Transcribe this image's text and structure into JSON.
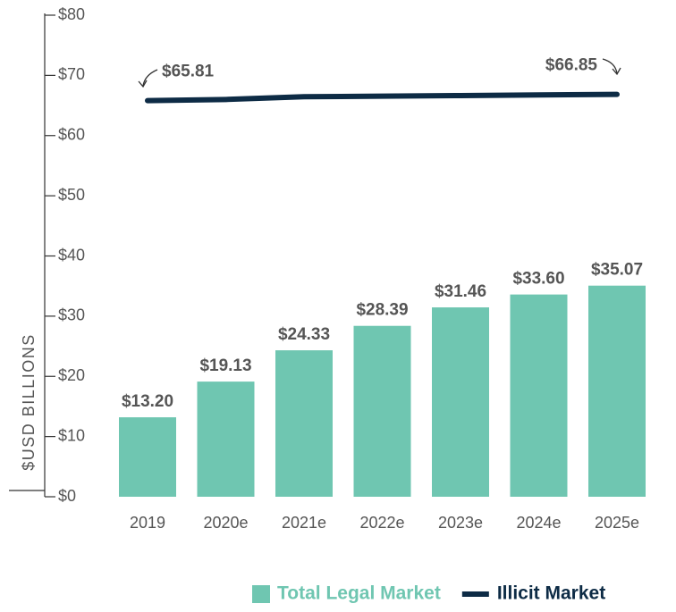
{
  "chart_data": {
    "type": "combo",
    "y_label": "$USD BILLIONS",
    "categories": [
      "2019",
      "2020e",
      "2021e",
      "2022e",
      "2023e",
      "2024e",
      "2025e"
    ],
    "series": [
      {
        "name": "Total Legal Market",
        "type": "bar",
        "color": "#6fc6b1",
        "values": [
          13.2,
          19.13,
          24.33,
          28.39,
          31.46,
          33.6,
          35.07
        ],
        "value_labels": [
          "$13.20",
          "$19.13",
          "$24.33",
          "$28.39",
          "$31.46",
          "$33.60",
          "$35.07"
        ]
      },
      {
        "name": "Illicit Market",
        "type": "line",
        "color": "#0d2b45",
        "values": [
          65.81,
          66.0,
          66.45,
          66.55,
          66.65,
          66.75,
          66.85
        ],
        "value_labels": [
          "$65.81",
          null,
          null,
          null,
          null,
          null,
          "$66.85"
        ]
      }
    ],
    "ylim": [
      0,
      80
    ],
    "yticks": [
      {
        "value": 0,
        "label": "$0"
      },
      {
        "value": 10,
        "label": "$10"
      },
      {
        "value": 20,
        "label": "$20"
      },
      {
        "value": 30,
        "label": "$30"
      },
      {
        "value": 40,
        "label": "$40"
      },
      {
        "value": 50,
        "label": "$50"
      },
      {
        "value": 60,
        "label": "$60"
      },
      {
        "value": 70,
        "label": "$70"
      },
      {
        "value": 80,
        "label": "$80"
      }
    ],
    "legend": "bottom-right"
  }
}
